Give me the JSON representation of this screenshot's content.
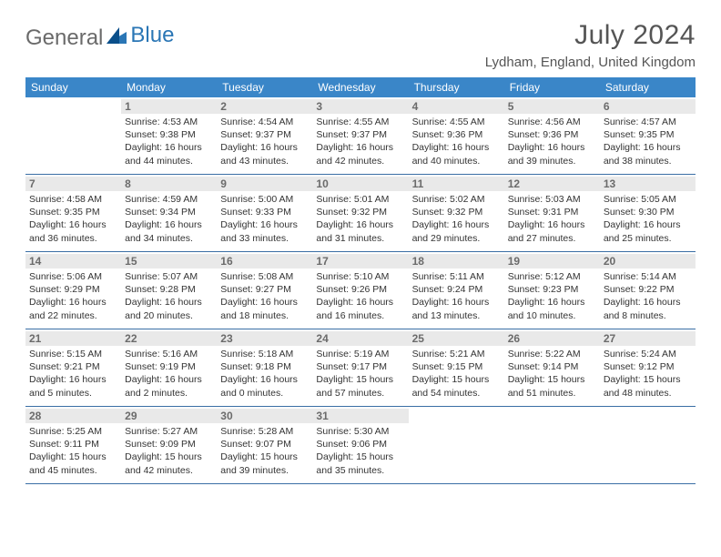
{
  "logo": {
    "word1": "General",
    "word2": "Blue"
  },
  "title": "July 2024",
  "location": "Lydham, England, United Kingdom",
  "colors": {
    "header_bg": "#3a86c8",
    "row_border": "#3a6ea5",
    "daynum_bg": "#e9e9e9",
    "logo_gray": "#6a6a6a",
    "logo_blue": "#2a76b5"
  },
  "dow": [
    "Sunday",
    "Monday",
    "Tuesday",
    "Wednesday",
    "Thursday",
    "Friday",
    "Saturday"
  ],
  "weeks": [
    [
      null,
      {
        "n": "1",
        "sr": "4:53 AM",
        "ss": "9:38 PM",
        "dlh": "16",
        "dlm": "44"
      },
      {
        "n": "2",
        "sr": "4:54 AM",
        "ss": "9:37 PM",
        "dlh": "16",
        "dlm": "43"
      },
      {
        "n": "3",
        "sr": "4:55 AM",
        "ss": "9:37 PM",
        "dlh": "16",
        "dlm": "42"
      },
      {
        "n": "4",
        "sr": "4:55 AM",
        "ss": "9:36 PM",
        "dlh": "16",
        "dlm": "40"
      },
      {
        "n": "5",
        "sr": "4:56 AM",
        "ss": "9:36 PM",
        "dlh": "16",
        "dlm": "39"
      },
      {
        "n": "6",
        "sr": "4:57 AM",
        "ss": "9:35 PM",
        "dlh": "16",
        "dlm": "38"
      }
    ],
    [
      {
        "n": "7",
        "sr": "4:58 AM",
        "ss": "9:35 PM",
        "dlh": "16",
        "dlm": "36"
      },
      {
        "n": "8",
        "sr": "4:59 AM",
        "ss": "9:34 PM",
        "dlh": "16",
        "dlm": "34"
      },
      {
        "n": "9",
        "sr": "5:00 AM",
        "ss": "9:33 PM",
        "dlh": "16",
        "dlm": "33"
      },
      {
        "n": "10",
        "sr": "5:01 AM",
        "ss": "9:32 PM",
        "dlh": "16",
        "dlm": "31"
      },
      {
        "n": "11",
        "sr": "5:02 AM",
        "ss": "9:32 PM",
        "dlh": "16",
        "dlm": "29"
      },
      {
        "n": "12",
        "sr": "5:03 AM",
        "ss": "9:31 PM",
        "dlh": "16",
        "dlm": "27"
      },
      {
        "n": "13",
        "sr": "5:05 AM",
        "ss": "9:30 PM",
        "dlh": "16",
        "dlm": "25"
      }
    ],
    [
      {
        "n": "14",
        "sr": "5:06 AM",
        "ss": "9:29 PM",
        "dlh": "16",
        "dlm": "22"
      },
      {
        "n": "15",
        "sr": "5:07 AM",
        "ss": "9:28 PM",
        "dlh": "16",
        "dlm": "20"
      },
      {
        "n": "16",
        "sr": "5:08 AM",
        "ss": "9:27 PM",
        "dlh": "16",
        "dlm": "18"
      },
      {
        "n": "17",
        "sr": "5:10 AM",
        "ss": "9:26 PM",
        "dlh": "16",
        "dlm": "16"
      },
      {
        "n": "18",
        "sr": "5:11 AM",
        "ss": "9:24 PM",
        "dlh": "16",
        "dlm": "13"
      },
      {
        "n": "19",
        "sr": "5:12 AM",
        "ss": "9:23 PM",
        "dlh": "16",
        "dlm": "10"
      },
      {
        "n": "20",
        "sr": "5:14 AM",
        "ss": "9:22 PM",
        "dlh": "16",
        "dlm": "8"
      }
    ],
    [
      {
        "n": "21",
        "sr": "5:15 AM",
        "ss": "9:21 PM",
        "dlh": "16",
        "dlm": "5"
      },
      {
        "n": "22",
        "sr": "5:16 AM",
        "ss": "9:19 PM",
        "dlh": "16",
        "dlm": "2"
      },
      {
        "n": "23",
        "sr": "5:18 AM",
        "ss": "9:18 PM",
        "dlh": "16",
        "dlm": "0"
      },
      {
        "n": "24",
        "sr": "5:19 AM",
        "ss": "9:17 PM",
        "dlh": "15",
        "dlm": "57"
      },
      {
        "n": "25",
        "sr": "5:21 AM",
        "ss": "9:15 PM",
        "dlh": "15",
        "dlm": "54"
      },
      {
        "n": "26",
        "sr": "5:22 AM",
        "ss": "9:14 PM",
        "dlh": "15",
        "dlm": "51"
      },
      {
        "n": "27",
        "sr": "5:24 AM",
        "ss": "9:12 PM",
        "dlh": "15",
        "dlm": "48"
      }
    ],
    [
      {
        "n": "28",
        "sr": "5:25 AM",
        "ss": "9:11 PM",
        "dlh": "15",
        "dlm": "45"
      },
      {
        "n": "29",
        "sr": "5:27 AM",
        "ss": "9:09 PM",
        "dlh": "15",
        "dlm": "42"
      },
      {
        "n": "30",
        "sr": "5:28 AM",
        "ss": "9:07 PM",
        "dlh": "15",
        "dlm": "39"
      },
      {
        "n": "31",
        "sr": "5:30 AM",
        "ss": "9:06 PM",
        "dlh": "15",
        "dlm": "35"
      },
      null,
      null,
      null
    ]
  ]
}
